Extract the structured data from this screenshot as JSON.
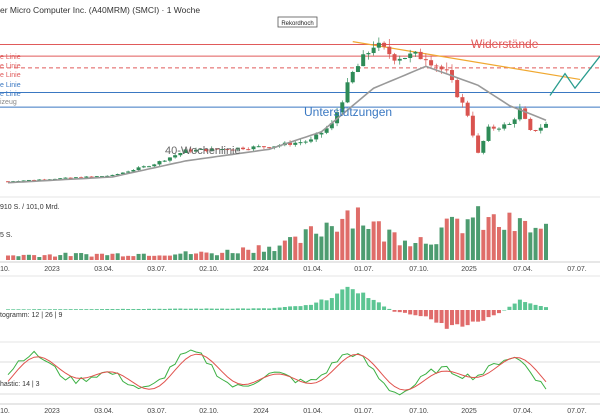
{
  "header": {
    "title": "er Micro Computer Inc. (A40MRM) (SMCI) · 1 Woche"
  },
  "annotations": {
    "rekord": "Rekordhoch",
    "widerstaende": "Widerstände",
    "unterstuetzungen": "Unterstützungen",
    "ma_label": "40-Wochenlinie",
    "left_labels": [
      "e Linie",
      "e Linie",
      "e Linie",
      "e Linie",
      "e Linie",
      "izeug"
    ]
  },
  "volume_panel": {
    "label": "910 S. / 101,0 Mrd.",
    "sublabel": "5 S."
  },
  "macd_panel": {
    "label": "togramm: 12 | 26 | 9"
  },
  "stoch_panel": {
    "label": "hastic: 14 | 3"
  },
  "x_axis": [
    "10.",
    "2023",
    "03.04.",
    "03.07.",
    "02.10.",
    "2024",
    "01.04.",
    "01.07.",
    "07.10.",
    "2025",
    "07.04.",
    "07.07."
  ],
  "colors": {
    "up": "#2e8b57",
    "down": "#d9534f",
    "resist": "#e05a5a",
    "support": "#3a78c2",
    "trend": "#f0a830",
    "ma": "#999999",
    "projection": "#2a9d8f"
  },
  "chart_data": {
    "type": "candlestick",
    "title": "er Micro Computer Inc. (A40MRM) (SMCI) · 1 Woche",
    "weeks": 104,
    "price_anchors": [
      [
        0,
        6
      ],
      [
        10,
        8
      ],
      [
        20,
        10
      ],
      [
        28,
        18
      ],
      [
        34,
        27
      ],
      [
        40,
        28
      ],
      [
        50,
        30
      ],
      [
        58,
        34
      ],
      [
        62,
        45
      ],
      [
        66,
        80
      ],
      [
        70,
        100
      ],
      [
        74,
        92
      ],
      [
        80,
        92
      ],
      [
        84,
        80
      ],
      [
        88,
        52
      ],
      [
        90,
        25
      ],
      [
        92,
        42
      ],
      [
        96,
        45
      ],
      [
        98,
        55
      ],
      [
        100,
        40
      ],
      [
        103,
        45
      ]
    ],
    "ma_anchors": [
      [
        0,
        5
      ],
      [
        20,
        9
      ],
      [
        34,
        20
      ],
      [
        50,
        28
      ],
      [
        60,
        40
      ],
      [
        70,
        70
      ],
      [
        80,
        85
      ],
      [
        90,
        72
      ],
      [
        96,
        58
      ],
      [
        103,
        48
      ]
    ],
    "volume_anchors": [
      [
        0,
        0.08
      ],
      [
        40,
        0.12
      ],
      [
        55,
        0.3
      ],
      [
        60,
        0.55
      ],
      [
        66,
        0.9
      ],
      [
        72,
        0.45
      ],
      [
        80,
        0.35
      ],
      [
        88,
        0.7
      ],
      [
        96,
        0.6
      ],
      [
        103,
        0.5
      ]
    ],
    "macd_anchors": [
      [
        0,
        0.02
      ],
      [
        50,
        0.05
      ],
      [
        58,
        0.15
      ],
      [
        66,
        0.7
      ],
      [
        70,
        0.3
      ],
      [
        74,
        -0.05
      ],
      [
        80,
        -0.2
      ],
      [
        84,
        -0.55
      ],
      [
        90,
        -0.4
      ],
      [
        94,
        -0.1
      ],
      [
        98,
        0.3
      ],
      [
        103,
        0.1
      ]
    ],
    "levels": {
      "resistances": [
        100,
        92,
        84
      ],
      "supports": [
        67,
        57
      ]
    }
  }
}
